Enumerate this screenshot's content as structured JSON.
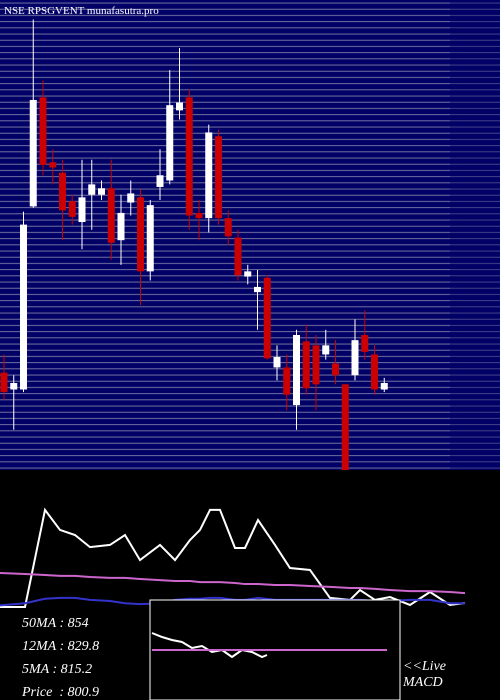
{
  "chart_data": [
    {
      "type": "candlestick",
      "title": "NSE RPSGVENT munafasutra.pro",
      "ylim": [
        738,
        1100
      ],
      "up_color": "#ffffff",
      "down_color": "#cc0000",
      "background": "#000066",
      "open": [
        813,
        800,
        800,
        941,
        1025,
        975,
        967,
        945,
        929,
        950,
        950,
        955,
        915,
        944,
        948,
        891,
        956,
        961,
        1015,
        1025,
        936,
        932,
        995,
        932,
        917,
        887,
        875,
        886,
        817,
        817,
        788,
        837,
        834,
        827,
        820,
        804,
        811,
        842,
        827,
        800
      ],
      "high": [
        827,
        811,
        937,
        1085,
        1038,
        985,
        977,
        950,
        977,
        977,
        961,
        977,
        950,
        961,
        954,
        946,
        985,
        1046,
        1063,
        1031,
        946,
        1004,
        1000,
        938,
        923,
        896,
        892,
        888,
        834,
        827,
        846,
        850,
        842,
        846,
        838,
        804,
        854,
        861,
        834,
        809
      ],
      "low": [
        792,
        769,
        798,
        940,
        965,
        958,
        915,
        927,
        908,
        923,
        946,
        900,
        896,
        934,
        865,
        884,
        946,
        958,
        1008,
        923,
        915,
        921,
        927,
        911,
        884,
        881,
        846,
        823,
        807,
        784,
        769,
        796,
        784,
        823,
        804,
        738,
        807,
        823,
        796,
        798
      ],
      "close": [
        798,
        805,
        927,
        1023,
        973,
        971,
        938,
        933,
        948,
        958,
        955,
        913,
        936,
        951,
        891,
        942,
        965,
        1019,
        1021,
        934,
        932,
        998,
        932,
        918,
        888,
        891,
        879,
        824,
        825,
        796,
        842,
        801,
        804,
        834,
        811,
        738,
        838,
        829,
        800,
        805
      ]
    },
    {
      "type": "line",
      "xlim": [
        0,
        465
      ],
      "ylim": [
        0,
        100
      ],
      "x": [
        0,
        25,
        45,
        60,
        75,
        90,
        110,
        125,
        140,
        160,
        175,
        190,
        200,
        210,
        220,
        235,
        245,
        258,
        275,
        290,
        310,
        330,
        350,
        360,
        375,
        390,
        410,
        430,
        450,
        465
      ],
      "series": [
        {
          "color": "#ffffff",
          "values": [
            42.3,
            42.3,
            86.4,
            77.3,
            75,
            69.5,
            70.5,
            75,
            63.6,
            70.5,
            63.6,
            72.7,
            77.3,
            86.4,
            86.4,
            69.1,
            69.1,
            81.8,
            70.5,
            60,
            59.1,
            46.4,
            45.5,
            50,
            45.5,
            46.8,
            43.2,
            49.1,
            43.2,
            44.1
          ]
        },
        {
          "color": "#cc66cc",
          "values": [
            57.7,
            57.3,
            56.8,
            56.4,
            56.4,
            55.9,
            55.5,
            55.5,
            55,
            54.5,
            54.1,
            54.1,
            53.6,
            53.6,
            53.6,
            53.2,
            52.7,
            52.7,
            52.3,
            52.3,
            51.8,
            51.4,
            50.9,
            50.9,
            50.5,
            50,
            49.5,
            49.5,
            49.1,
            48.6
          ]
        },
        {
          "color": "#3333cc",
          "values": [
            43,
            44,
            46,
            46.4,
            46.4,
            45.5,
            45,
            44,
            43.6,
            44,
            45.5,
            46,
            46,
            46.4,
            46.4,
            45.5,
            45.5,
            46.4,
            45.5,
            45.5,
            45.5,
            45.5,
            45.5,
            45.5,
            45,
            45,
            45.5,
            45.5,
            44,
            44
          ]
        }
      ]
    },
    {
      "type": "line",
      "title": "MACD",
      "xlim": [
        0,
        235
      ],
      "ylim": [
        0,
        100
      ],
      "series": [
        {
          "color": "#ffffff",
          "x": [
            0,
            10,
            20,
            30,
            40,
            50,
            60,
            70,
            80,
            90,
            100,
            110,
            115
          ],
          "values": [
            67,
            63,
            60,
            58,
            52,
            54,
            48,
            50,
            43,
            50,
            48,
            43,
            45
          ]
        },
        {
          "color": "#cc66cc",
          "x": [
            0,
            235
          ],
          "values": [
            50,
            50
          ]
        }
      ]
    }
  ],
  "stats": [
    "50MA : 854",
    "12MA : 829.8",
    "5MA : 815.2",
    "Price  : 800.9"
  ],
  "live": "<<Live"
}
